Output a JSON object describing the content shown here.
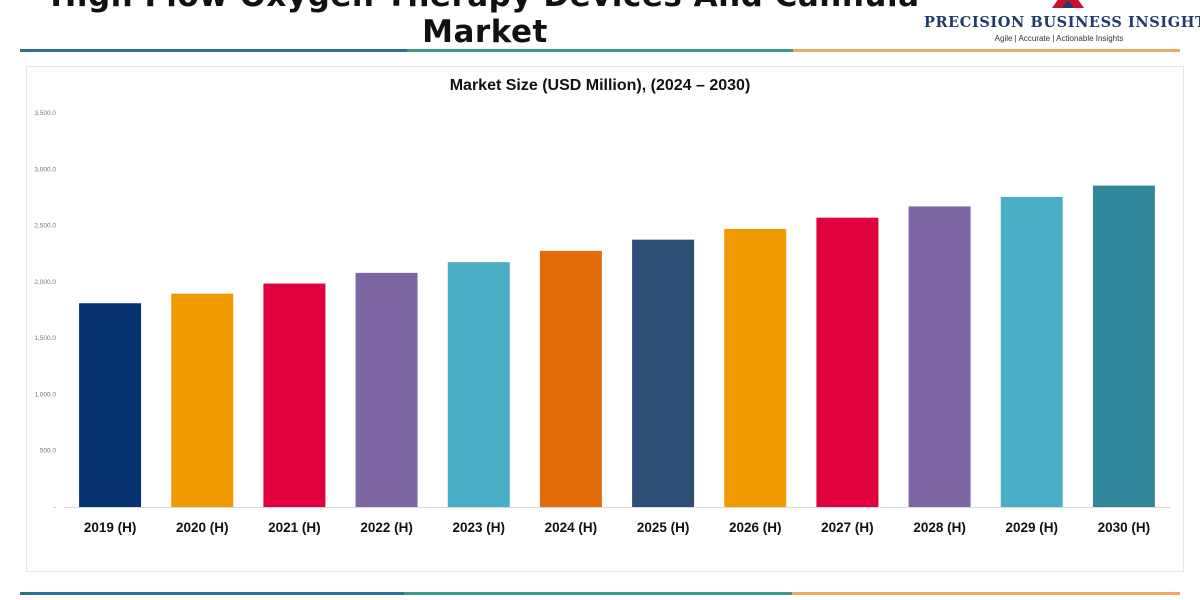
{
  "header": {
    "title": "High Flow Oxygen Therapy Devices And Cannula Market"
  },
  "logo": {
    "name": "PRECISION BUSINESS INSIGHTS",
    "tagline": "Agile | Accurate | Actionable Insights"
  },
  "chart_data": {
    "type": "bar",
    "title": "Market Size (USD Million), (2024 – 2030)",
    "xlabel": "",
    "ylabel": "",
    "categories": [
      "2019 (H)",
      "2020 (H)",
      "2021 (H)",
      "2022 (H)",
      "2023 (H)",
      "2024 (H)",
      "2025 (H)",
      "2026 (H)",
      "2027 (H)",
      "2028 (H)",
      "2029 (H)",
      "2030 (H)"
    ],
    "values": [
      1810,
      1895,
      1985,
      2080,
      2175,
      2275,
      2375,
      2470,
      2570,
      2670,
      2755,
      2855
    ],
    "colors": [
      "#053270",
      "#f19b00",
      "#e0003e",
      "#7d66a3",
      "#4aafc6",
      "#e26c0a",
      "#2c4d74",
      "#f19b00",
      "#e0003e",
      "#7d66a3",
      "#4aafc6",
      "#318799"
    ],
    "ylim": [
      0,
      3500
    ],
    "yticks": [
      "-",
      "500.0",
      "1,000.0",
      "1,500.0",
      "2,000.0",
      "2,500.0",
      "3,000.0",
      "3,500.0"
    ],
    "grid": false,
    "legend": "none"
  }
}
